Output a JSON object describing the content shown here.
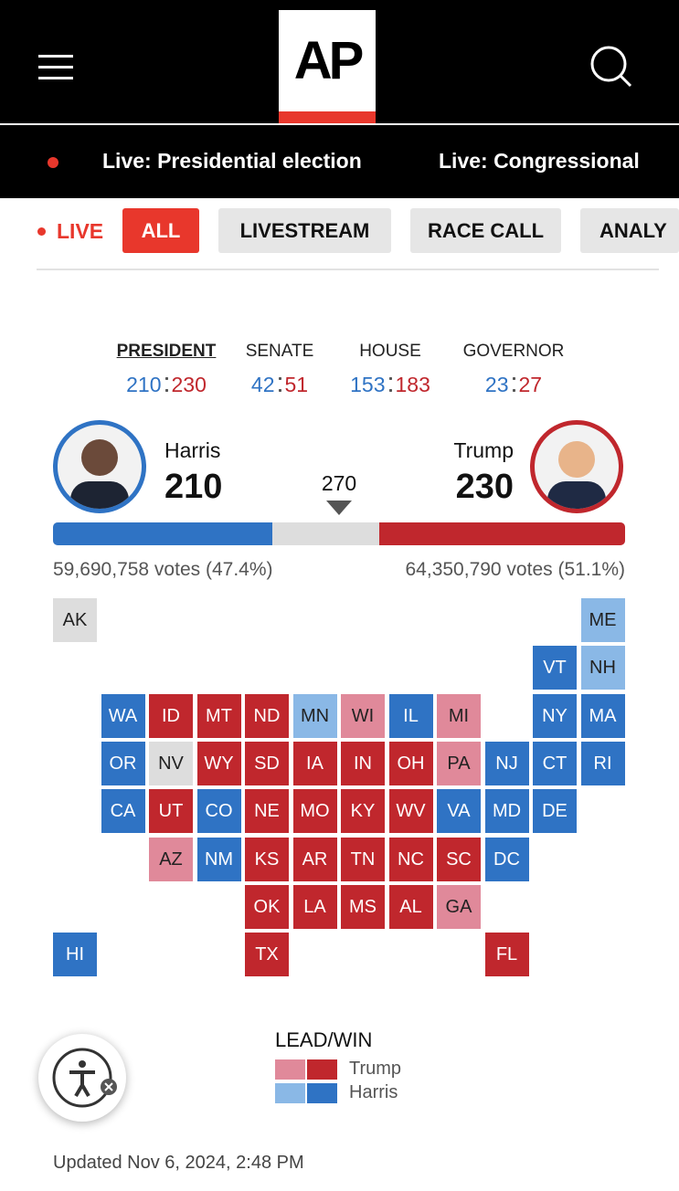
{
  "header": {
    "logo": "AP"
  },
  "ticker": [
    "Live: Presidential election",
    "Live: Congressional"
  ],
  "filters": {
    "live": "LIVE",
    "tabs": [
      "ALL",
      "LIVESTREAM",
      "RACE CALL",
      "ANALY"
    ]
  },
  "races": [
    {
      "name": "PRESIDENT",
      "dem": 210,
      "rep": 230
    },
    {
      "name": "SENATE",
      "dem": 42,
      "rep": 51
    },
    {
      "name": "HOUSE",
      "dem": 153,
      "rep": 183
    },
    {
      "name": "GOVERNOR",
      "dem": 23,
      "rep": 27
    }
  ],
  "candidates": [
    {
      "name": "Harris",
      "electoral_votes": 210,
      "votes": "59,690,758 votes (47.4%)",
      "color": "#2f73c4"
    },
    {
      "name": "Trump",
      "electoral_votes": 230,
      "votes": "64,350,790 votes (51.1%)",
      "color": "#c0272d"
    }
  ],
  "threshold": 270,
  "map": {
    "states": [
      {
        "label": "AK",
        "color": "#dddddd"
      },
      {
        "label": "ME",
        "color": "#8ab8e6"
      },
      {
        "label": "VT",
        "color": "#2f73c4"
      },
      {
        "label": "NH",
        "color": "#8ab8e6"
      },
      {
        "label": "WA",
        "color": "#2f73c4"
      },
      {
        "label": "ID",
        "color": "#c0272d"
      },
      {
        "label": "MT",
        "color": "#c0272d"
      },
      {
        "label": "ND",
        "color": "#c0272d"
      },
      {
        "label": "MN",
        "color": "#8ab8e6"
      },
      {
        "label": "WI",
        "color": "#e0899a"
      },
      {
        "label": "IL",
        "color": "#2f73c4"
      },
      {
        "label": "MI",
        "color": "#e0899a"
      },
      {
        "label": "NY",
        "color": "#2f73c4"
      },
      {
        "label": "MA",
        "color": "#2f73c4"
      },
      {
        "label": "OR",
        "color": "#2f73c4"
      },
      {
        "label": "NV",
        "color": "#dddddd"
      },
      {
        "label": "WY",
        "color": "#c0272d"
      },
      {
        "label": "SD",
        "color": "#c0272d"
      },
      {
        "label": "IA",
        "color": "#c0272d"
      },
      {
        "label": "IN",
        "color": "#c0272d"
      },
      {
        "label": "OH",
        "color": "#c0272d"
      },
      {
        "label": "PA",
        "color": "#e0899a"
      },
      {
        "label": "NJ",
        "color": "#2f73c4"
      },
      {
        "label": "CT",
        "color": "#2f73c4"
      },
      {
        "label": "RI",
        "color": "#2f73c4"
      },
      {
        "label": "CA",
        "color": "#2f73c4"
      },
      {
        "label": "UT",
        "color": "#c0272d"
      },
      {
        "label": "CO",
        "color": "#2f73c4"
      },
      {
        "label": "NE",
        "color": "#c0272d"
      },
      {
        "label": "MO",
        "color": "#c0272d"
      },
      {
        "label": "KY",
        "color": "#c0272d"
      },
      {
        "label": "WV",
        "color": "#c0272d"
      },
      {
        "label": "VA",
        "color": "#2f73c4"
      },
      {
        "label": "MD",
        "color": "#2f73c4"
      },
      {
        "label": "DE",
        "color": "#2f73c4"
      },
      {
        "label": "AZ",
        "color": "#e0899a"
      },
      {
        "label": "NM",
        "color": "#2f73c4"
      },
      {
        "label": "KS",
        "color": "#c0272d"
      },
      {
        "label": "AR",
        "color": "#c0272d"
      },
      {
        "label": "TN",
        "color": "#c0272d"
      },
      {
        "label": "NC",
        "color": "#c0272d"
      },
      {
        "label": "SC",
        "color": "#c0272d"
      },
      {
        "label": "DC",
        "color": "#2f73c4"
      },
      {
        "label": "OK",
        "color": "#c0272d"
      },
      {
        "label": "LA",
        "color": "#c0272d"
      },
      {
        "label": "MS",
        "color": "#c0272d"
      },
      {
        "label": "AL",
        "color": "#c0272d"
      },
      {
        "label": "GA",
        "color": "#e0899a"
      },
      {
        "label": "HI",
        "color": "#2f73c4"
      },
      {
        "label": "TX",
        "color": "#c0272d"
      },
      {
        "label": "FL",
        "color": "#c0272d"
      }
    ]
  },
  "legend": {
    "title": "LEAD/WIN",
    "items": [
      {
        "name": "Trump",
        "colors": [
          "#e0899a",
          "#c0272d"
        ]
      },
      {
        "name": "Harris",
        "colors": [
          "#8ab8e6",
          "#2f73c4"
        ]
      }
    ]
  },
  "updated": "Updated Nov 6, 2024, 2:48 PM"
}
